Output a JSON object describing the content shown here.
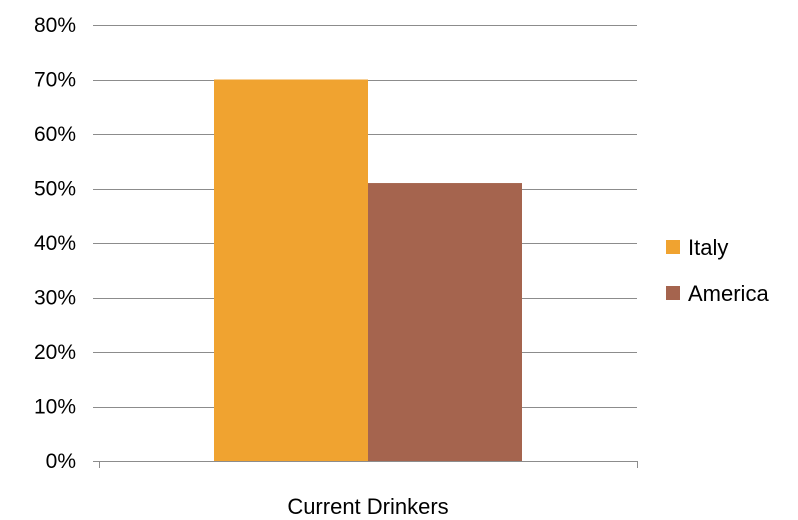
{
  "chart_data": {
    "type": "bar",
    "categories": [
      "Current Drinkers"
    ],
    "series": [
      {
        "name": "Italy",
        "values": [
          70
        ],
        "color": "#F0A330"
      },
      {
        "name": "America",
        "values": [
          51
        ],
        "color": "#A5644E"
      }
    ],
    "ylim": [
      0,
      80
    ],
    "y_ticks": [
      "0%",
      "10%",
      "20%",
      "30%",
      "40%",
      "50%",
      "60%",
      "70%",
      "80%"
    ],
    "y_tick_values": [
      0,
      10,
      20,
      30,
      40,
      50,
      60,
      70,
      80
    ],
    "grid": true,
    "legend_position": "right"
  }
}
